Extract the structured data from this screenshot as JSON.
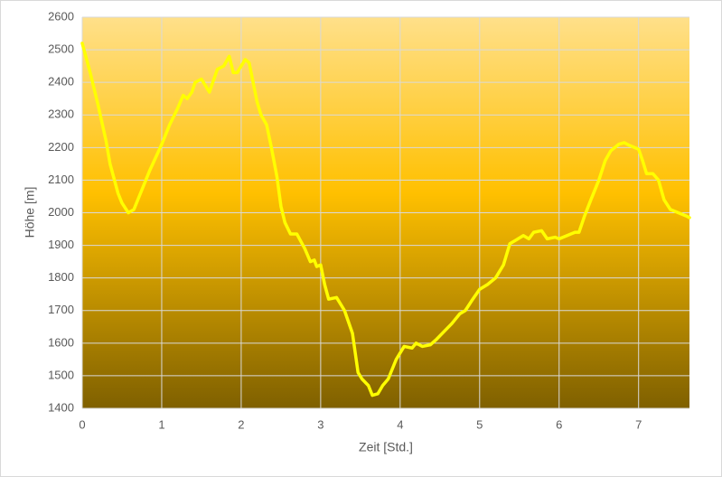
{
  "chart_data": {
    "type": "line",
    "xlabel": "Zeit [Std.]",
    "ylabel": "Höhe [m]",
    "x": [
      0,
      0.1,
      0.2,
      0.3,
      0.35,
      0.45,
      0.5,
      0.58,
      0.65,
      0.75,
      0.85,
      1.0,
      1.1,
      1.2,
      1.27,
      1.32,
      1.38,
      1.42,
      1.5,
      1.6,
      1.7,
      1.78,
      1.85,
      1.9,
      1.95,
      2.05,
      2.1,
      2.2,
      2.25,
      2.32,
      2.38,
      2.45,
      2.5,
      2.55,
      2.62,
      2.7,
      2.8,
      2.87,
      2.92,
      2.95,
      3.0,
      3.05,
      3.1,
      3.2,
      3.3,
      3.4,
      3.47,
      3.52,
      3.6,
      3.65,
      3.72,
      3.78,
      3.85,
      3.95,
      4.05,
      4.15,
      4.2,
      4.28,
      4.38,
      4.45,
      4.55,
      4.65,
      4.75,
      4.82,
      4.9,
      5.0,
      5.1,
      5.2,
      5.3,
      5.38,
      5.45,
      5.55,
      5.62,
      5.68,
      5.78,
      5.85,
      5.95,
      6.0,
      6.1,
      6.2,
      6.25,
      6.32,
      6.4,
      6.5,
      6.58,
      6.65,
      6.75,
      6.82,
      6.9,
      7.0,
      7.05,
      7.1,
      7.18,
      7.25,
      7.32,
      7.4,
      7.5,
      7.6,
      7.64
    ],
    "series": [
      {
        "color": "#ffff00",
        "values": [
          2520,
          2430,
          2330,
          2220,
          2150,
          2060,
          2030,
          2000,
          2010,
          2070,
          2130,
          2210,
          2270,
          2320,
          2360,
          2350,
          2370,
          2400,
          2410,
          2370,
          2440,
          2450,
          2480,
          2430,
          2430,
          2470,
          2460,
          2340,
          2300,
          2270,
          2200,
          2110,
          2020,
          1970,
          1935,
          1935,
          1890,
          1850,
          1855,
          1835,
          1840,
          1780,
          1735,
          1740,
          1700,
          1630,
          1510,
          1490,
          1470,
          1440,
          1445,
          1470,
          1490,
          1550,
          1590,
          1585,
          1600,
          1590,
          1595,
          1610,
          1635,
          1660,
          1690,
          1700,
          1730,
          1765,
          1780,
          1800,
          1840,
          1905,
          1915,
          1930,
          1920,
          1940,
          1945,
          1920,
          1925,
          1920,
          1930,
          1940,
          1940,
          1990,
          2040,
          2100,
          2160,
          2190,
          2210,
          2215,
          2205,
          2195,
          2160,
          2120,
          2120,
          2100,
          2040,
          2010,
          2000,
          1990,
          1985
        ]
      }
    ],
    "xlim": [
      0,
      7.64
    ],
    "xticks": [
      0,
      1,
      2,
      3,
      4,
      5,
      6,
      7
    ],
    "ylim": [
      1400,
      2600
    ],
    "yticks": [
      1400,
      1500,
      1600,
      1700,
      1800,
      1900,
      2000,
      2100,
      2200,
      2300,
      2400,
      2500,
      2600
    ],
    "grid": true
  }
}
